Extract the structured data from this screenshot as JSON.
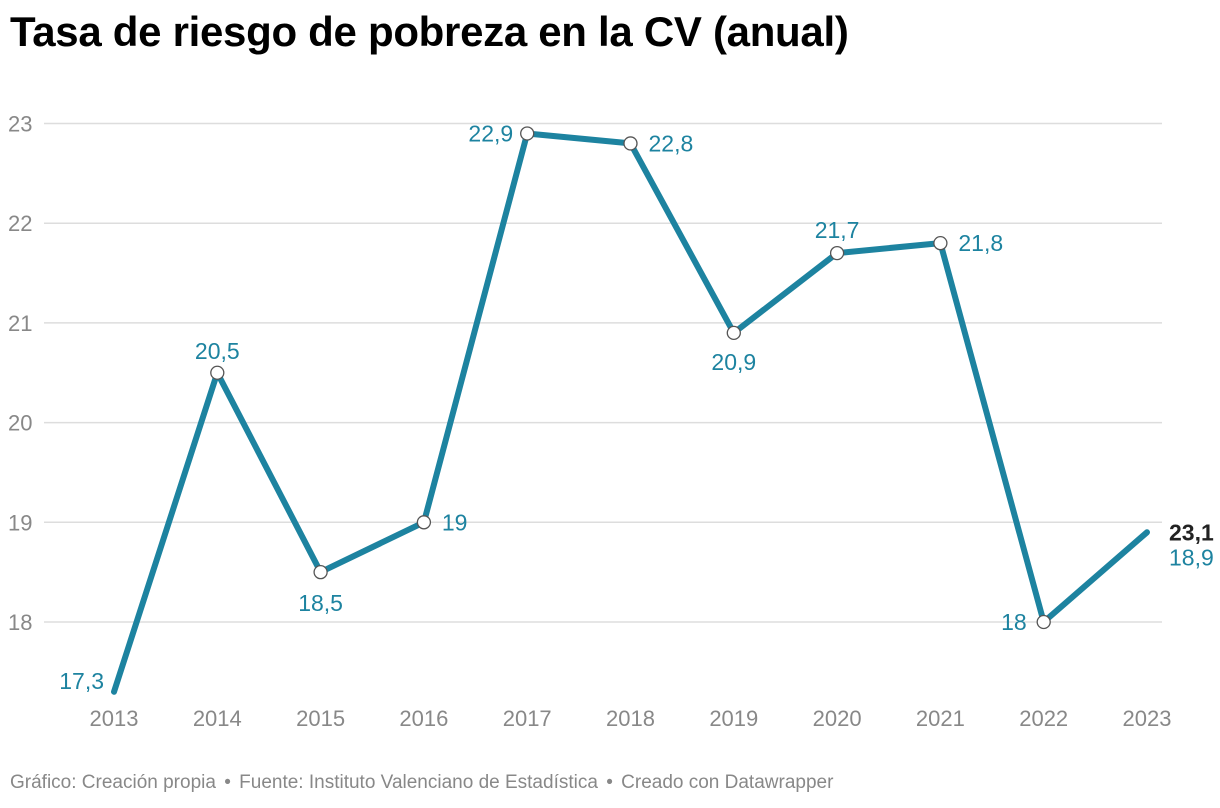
{
  "colors": {
    "line": "#1d83a0",
    "grid": "#dddddd",
    "tick": "#888888",
    "title": "#000000",
    "highlight": "#222222"
  },
  "chart_data": {
    "type": "line",
    "title": "Tasa de riesgo de pobreza en la CV (anual)",
    "xlabel": "",
    "ylabel": "",
    "ylim": [
      17.3,
      23.1
    ],
    "grid": true,
    "yticks": [
      "18",
      "19",
      "20",
      "21",
      "22",
      "23"
    ],
    "categories": [
      "2013",
      "2014",
      "2015",
      "2016",
      "2017",
      "2018",
      "2019",
      "2020",
      "2021",
      "2022",
      "2023"
    ],
    "series": [
      {
        "name": "Tasa de riesgo de pobreza",
        "values": [
          17.3,
          20.5,
          18.5,
          19,
          22.9,
          22.8,
          20.9,
          21.7,
          21.8,
          18,
          18.9
        ]
      }
    ],
    "data_labels": [
      "17,3",
      "20,5",
      "18,5",
      "19",
      "22,9",
      "22,8",
      "20,9",
      "21,7",
      "21,8",
      "18",
      "18,9"
    ],
    "highlight_label": "23,1"
  },
  "footer": {
    "source": "Gráfico: Creación propia",
    "origin": "Fuente: Instituto Valenciano de Estadística",
    "tool": "Creado con Datawrapper",
    "separator": "•"
  }
}
